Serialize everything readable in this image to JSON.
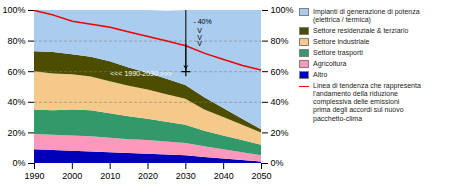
{
  "chart_data": {
    "type": "area",
    "stacked": true,
    "legend": "right",
    "grid": false,
    "x": [
      1990,
      1995,
      2000,
      2005,
      2010,
      2015,
      2020,
      2025,
      2030,
      2035,
      2040,
      2045,
      2050
    ],
    "series": [
      {
        "name": "Altro",
        "color": "#0000bb",
        "values": [
          9,
          8.5,
          8,
          7.5,
          7,
          6.5,
          6,
          5.5,
          5,
          4,
          3,
          2,
          1
        ]
      },
      {
        "name": "Agricoltura",
        "color": "#ff99bb",
        "values": [
          10,
          10,
          10,
          10,
          9.5,
          9,
          9,
          8.5,
          8,
          7,
          6,
          5,
          4
        ]
      },
      {
        "name": "Settore trasporti",
        "color": "#33996a",
        "values": [
          16,
          16,
          17,
          17,
          16,
          15,
          14,
          13,
          12,
          10,
          9,
          8,
          7
        ]
      },
      {
        "name": "Settore industriale",
        "color": "#f5c98a",
        "values": [
          25,
          24,
          23,
          22,
          21,
          20,
          19,
          18,
          17,
          14,
          12,
          10,
          8
        ]
      },
      {
        "name": "Settore residenziale & terziario",
        "color": "#4d4d00",
        "values": [
          13,
          14,
          13,
          13,
          13,
          12,
          11,
          10,
          9,
          8,
          6,
          4,
          2
        ]
      },
      {
        "name": "Impianti di generazione di potenza\n(elettrica / termica)",
        "color": "#aaccee",
        "values": [
          27,
          27.5,
          29,
          30.5,
          33.5,
          37.5,
          41,
          44.5,
          49,
          57,
          64,
          71,
          78
        ]
      },
      {
        "name": "Linea di tendenza che rappresenta\nl'andamento della riduzione\ncomplessiva delle emissioni\nprima degli accordi sul nuovo\npacchetto-clima",
        "color": "#ee0000",
        "type": "line",
        "values": [
          100,
          97,
          93,
          91,
          89,
          86,
          83,
          80,
          77,
          72,
          68,
          64,
          61
        ]
      }
    ],
    "xlim": [
      1990,
      2050
    ],
    "xticks": [
      1990,
      2000,
      2010,
      2020,
      2030,
      2040,
      2050
    ],
    "ylim": [
      0,
      100
    ],
    "yticks": [
      {
        "value": 0,
        "label": "0%"
      },
      {
        "value": 20,
        "label": "20%"
      },
      {
        "value": 40,
        "label": "40%"
      },
      {
        "value": 60,
        "label": "60%"
      },
      {
        "value": 80,
        "label": "80%"
      },
      {
        "value": 100,
        "label": "100%"
      }
    ],
    "y2lim": [
      0,
      100
    ],
    "y2ticks": [
      {
        "value": 0,
        "label": "0%"
      },
      {
        "value": 20,
        "label": "20%"
      },
      {
        "value": 40,
        "label": "40%"
      },
      {
        "value": 60,
        "label": "60%"
      },
      {
        "value": 80,
        "label": "80%"
      },
      {
        "value": 100,
        "label": "100%"
      }
    ],
    "hlines": [
      40,
      60,
      80
    ],
    "vline": {
      "x": 2030,
      "y": [
        60,
        100
      ]
    },
    "arrow": {
      "x": 2030,
      "y": [
        78,
        62
      ]
    },
    "crosshair": {
      "x": 2030,
      "y": 60
    },
    "annotations": [
      {
        "text": "- 40%",
        "x": 2032,
        "y": 91,
        "color": "black"
      },
      {
        "text": "V",
        "x": 2033,
        "y": 85,
        "color": "black"
      },
      {
        "text": "V",
        "x": 2033,
        "y": 81,
        "color": "black"
      },
      {
        "text": "V",
        "x": 2033,
        "y": 77,
        "color": "black"
      },
      {
        "text": "<<< 1990-2030 >>>",
        "x": 2010,
        "y": 57,
        "color": "white"
      }
    ]
  }
}
